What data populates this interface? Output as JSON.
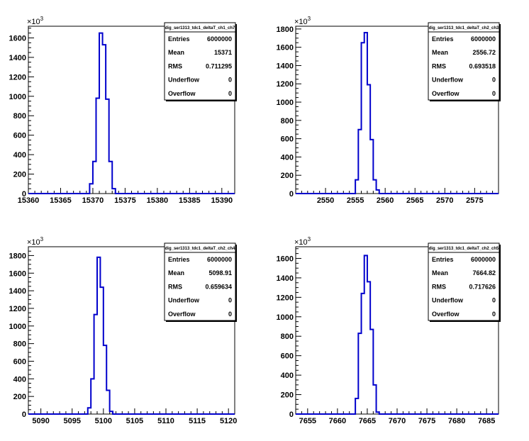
{
  "chart_data": [
    {
      "type": "bar",
      "title": "",
      "stats_title": "dig_ser1313_tdc1_deltaT_ch1_ch7",
      "exponent_label": "×10",
      "exponent_power": "3",
      "xlim": [
        15360,
        15392
      ],
      "ylim": [
        0,
        1720
      ],
      "xticks": [
        15360,
        15365,
        15370,
        15375,
        15380,
        15385,
        15390
      ],
      "yticks": [
        0,
        200,
        400,
        600,
        800,
        1000,
        1200,
        1400,
        1600
      ],
      "bins": [
        {
          "x0": 15369.0,
          "x1": 15369.5,
          "y": 0
        },
        {
          "x0": 15369.5,
          "x1": 15370.0,
          "y": 100
        },
        {
          "x0": 15370.0,
          "x1": 15370.5,
          "y": 330
        },
        {
          "x0": 15370.5,
          "x1": 15371.0,
          "y": 980
        },
        {
          "x0": 15371.0,
          "x1": 15371.5,
          "y": 1650
        },
        {
          "x0": 15371.5,
          "x1": 15372.0,
          "y": 1530
        },
        {
          "x0": 15372.0,
          "x1": 15372.5,
          "y": 970
        },
        {
          "x0": 15372.5,
          "x1": 15373.0,
          "y": 330
        },
        {
          "x0": 15373.0,
          "x1": 15373.5,
          "y": 50
        },
        {
          "x0": 15373.5,
          "x1": 15374.0,
          "y": 0
        }
      ],
      "stats": [
        {
          "key": "Entries",
          "value": "6000000"
        },
        {
          "key": "Mean",
          "value": "15371"
        },
        {
          "key": "RMS",
          "value": "0.711295"
        },
        {
          "key": "Underflow",
          "value": "0"
        },
        {
          "key": "Overflow",
          "value": "0"
        }
      ]
    },
    {
      "type": "bar",
      "title": "",
      "stats_title": "dig_ser1313_tdc1_deltaT_ch2_ch3",
      "exponent_label": "×10",
      "exponent_power": "3",
      "xlim": [
        2545,
        2579
      ],
      "ylim": [
        0,
        1830
      ],
      "xticks": [
        2550,
        2555,
        2560,
        2565,
        2570,
        2575
      ],
      "yticks": [
        0,
        200,
        400,
        600,
        800,
        1000,
        1200,
        1400,
        1600,
        1800
      ],
      "bins": [
        {
          "x0": 2554.5,
          "x1": 2555.0,
          "y": 0
        },
        {
          "x0": 2555.0,
          "x1": 2555.5,
          "y": 150
        },
        {
          "x0": 2555.5,
          "x1": 2556.0,
          "y": 700
        },
        {
          "x0": 2556.0,
          "x1": 2556.5,
          "y": 1650
        },
        {
          "x0": 2556.5,
          "x1": 2557.0,
          "y": 1760
        },
        {
          "x0": 2557.0,
          "x1": 2557.5,
          "y": 1190
        },
        {
          "x0": 2557.5,
          "x1": 2558.0,
          "y": 590
        },
        {
          "x0": 2558.0,
          "x1": 2558.5,
          "y": 150
        },
        {
          "x0": 2558.5,
          "x1": 2559.0,
          "y": 40
        },
        {
          "x0": 2559.0,
          "x1": 2559.5,
          "y": 0
        }
      ],
      "stats": [
        {
          "key": "Entries",
          "value": "6000000"
        },
        {
          "key": "Mean",
          "value": "2556.72"
        },
        {
          "key": "RMS",
          "value": "0.693518"
        },
        {
          "key": "Underflow",
          "value": "0"
        },
        {
          "key": "Overflow",
          "value": "0"
        }
      ]
    },
    {
      "type": "bar",
      "title": "",
      "stats_title": "dig_ser1313_tdc1_deltaT_ch2_ch4",
      "exponent_label": "×10",
      "exponent_power": "3",
      "xlim": [
        5088,
        5121
      ],
      "ylim": [
        0,
        1900
      ],
      "xticks": [
        5090,
        5095,
        5100,
        5105,
        5110,
        5115,
        5120
      ],
      "yticks": [
        0,
        200,
        400,
        600,
        800,
        1000,
        1200,
        1400,
        1600,
        1800
      ],
      "bins": [
        {
          "x0": 5097.0,
          "x1": 5097.5,
          "y": 0
        },
        {
          "x0": 5097.5,
          "x1": 5098.0,
          "y": 70
        },
        {
          "x0": 5098.0,
          "x1": 5098.5,
          "y": 400
        },
        {
          "x0": 5098.5,
          "x1": 5099.0,
          "y": 1130
        },
        {
          "x0": 5099.0,
          "x1": 5099.5,
          "y": 1780
        },
        {
          "x0": 5099.5,
          "x1": 5100.0,
          "y": 1440
        },
        {
          "x0": 5100.0,
          "x1": 5100.5,
          "y": 780
        },
        {
          "x0": 5100.5,
          "x1": 5101.0,
          "y": 270
        },
        {
          "x0": 5101.0,
          "x1": 5101.5,
          "y": 30
        },
        {
          "x0": 5101.5,
          "x1": 5102.0,
          "y": 0
        }
      ],
      "stats": [
        {
          "key": "Entries",
          "value": "6000000"
        },
        {
          "key": "Mean",
          "value": "5098.91"
        },
        {
          "key": "RMS",
          "value": "0.659634"
        },
        {
          "key": "Underflow",
          "value": "0"
        },
        {
          "key": "Overflow",
          "value": "0"
        }
      ]
    },
    {
      "type": "bar",
      "title": "",
      "stats_title": "dig_ser1313_tdc1_deltaT_ch2_ch5",
      "exponent_label": "×10",
      "exponent_power": "3",
      "xlim": [
        7653,
        7687
      ],
      "ylim": [
        0,
        1720
      ],
      "xticks": [
        7655,
        7660,
        7665,
        7670,
        7675,
        7680,
        7685
      ],
      "yticks": [
        0,
        200,
        400,
        600,
        800,
        1000,
        1200,
        1400,
        1600
      ],
      "bins": [
        {
          "x0": 7662.5,
          "x1": 7663.0,
          "y": 0
        },
        {
          "x0": 7663.0,
          "x1": 7663.5,
          "y": 160
        },
        {
          "x0": 7663.5,
          "x1": 7664.0,
          "y": 830
        },
        {
          "x0": 7664.0,
          "x1": 7664.5,
          "y": 1240
        },
        {
          "x0": 7664.5,
          "x1": 7665.0,
          "y": 1630
        },
        {
          "x0": 7665.0,
          "x1": 7665.5,
          "y": 1360
        },
        {
          "x0": 7665.5,
          "x1": 7666.0,
          "y": 870
        },
        {
          "x0": 7666.0,
          "x1": 7666.5,
          "y": 300
        },
        {
          "x0": 7666.5,
          "x1": 7667.0,
          "y": 20
        },
        {
          "x0": 7667.0,
          "x1": 7667.5,
          "y": 0
        }
      ],
      "stats": [
        {
          "key": "Entries",
          "value": "6000000"
        },
        {
          "key": "Mean",
          "value": "7664.82"
        },
        {
          "key": "RMS",
          "value": "0.717626"
        },
        {
          "key": "Underflow",
          "value": "0"
        },
        {
          "key": "Overflow",
          "value": "0"
        }
      ]
    }
  ]
}
